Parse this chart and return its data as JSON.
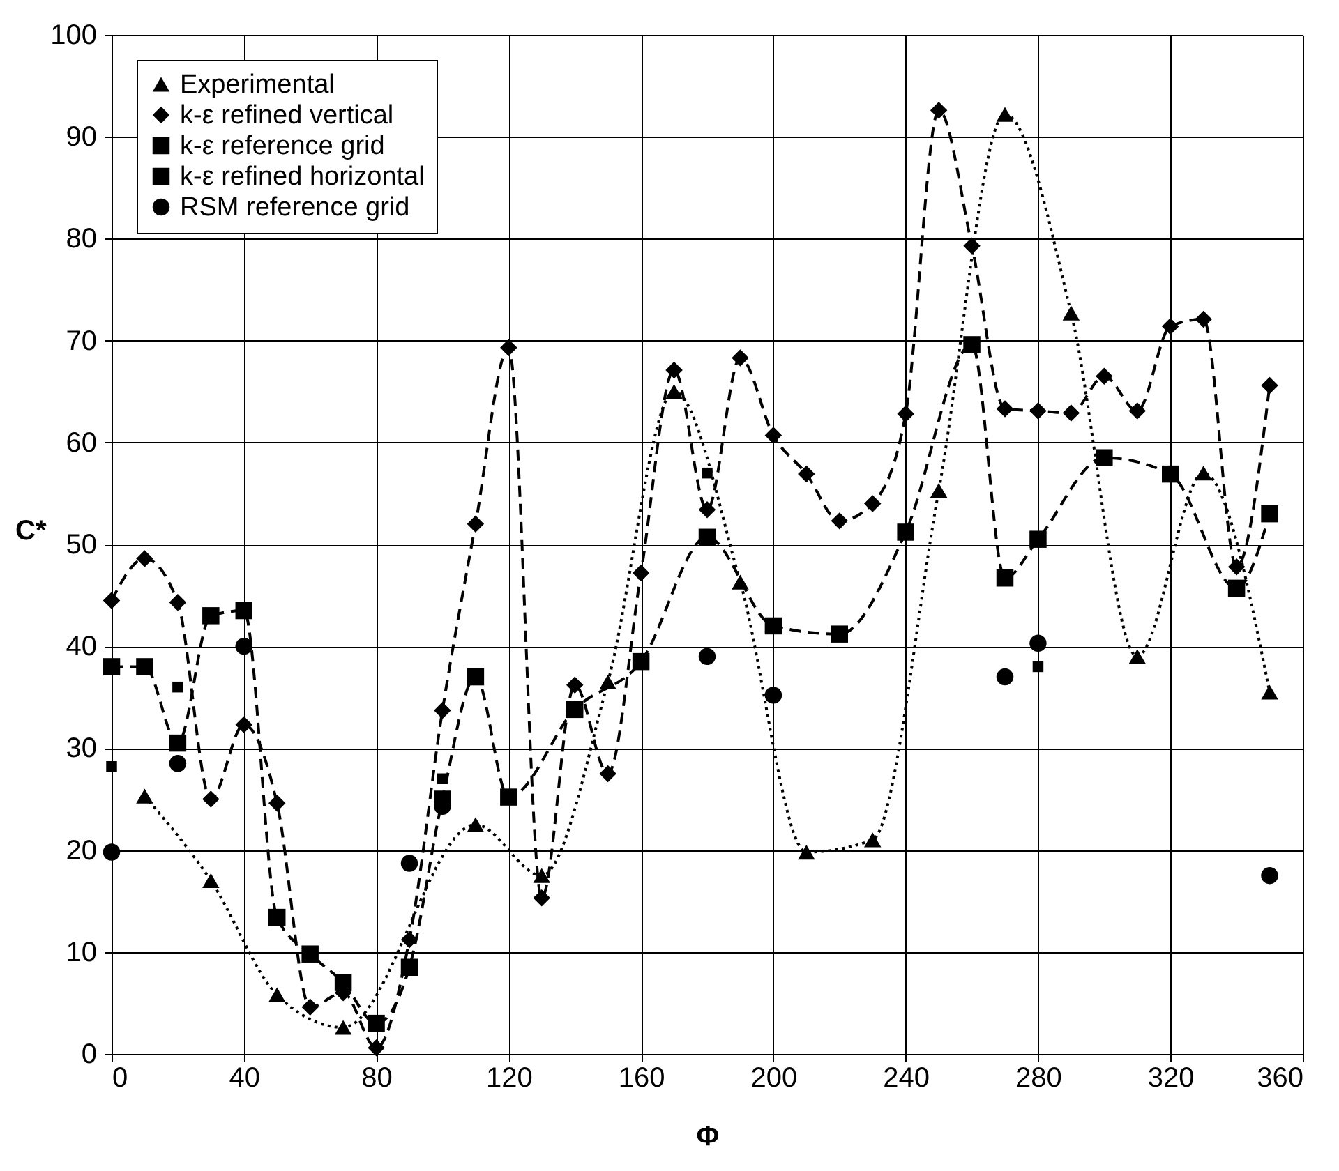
{
  "chart_data": {
    "type": "line",
    "xlabel": "Φ",
    "ylabel": "C*",
    "xlim": [
      0,
      360
    ],
    "xticks": [
      0,
      40,
      80,
      120,
      160,
      200,
      240,
      280,
      320,
      360
    ],
    "ylim": [
      0,
      100
    ],
    "yticks": [
      0,
      10,
      20,
      30,
      40,
      50,
      60,
      70,
      80,
      90,
      100
    ],
    "grid": true,
    "legend": "top left",
    "series": [
      {
        "name": "Experimental",
        "type": "line",
        "line_style": "dotted",
        "marker": "triangle",
        "color": "#000000",
        "x": [
          10,
          30,
          50,
          70,
          110,
          130,
          150,
          170,
          190,
          210,
          230,
          250,
          270,
          290,
          310,
          330,
          350
        ],
        "values": [
          25.3,
          17,
          5.8,
          2.6,
          22.5,
          17.5,
          36.5,
          65,
          46.3,
          19.8,
          21,
          55.3,
          92.2,
          72.7,
          39,
          57,
          35.5
        ]
      },
      {
        "name": "k-ε refined vertical",
        "type": "line",
        "line_style": "dashed",
        "marker": "diamond",
        "color": "#000000",
        "x": [
          0,
          10,
          20,
          30,
          40,
          50,
          60,
          70,
          80,
          90,
          100,
          110,
          120,
          130,
          140,
          150,
          160,
          170,
          180,
          190,
          200,
          210,
          220,
          230,
          240,
          250,
          260,
          270,
          280,
          290,
          300,
          310,
          320,
          330,
          340,
          350
        ],
        "values": [
          44.5,
          48.6,
          44.3,
          25,
          32.3,
          24.6,
          4.6,
          6,
          0.6,
          11.2,
          33.7,
          52,
          69.3,
          15.3,
          36.2,
          27.5,
          47.2,
          67.1,
          53.4,
          68.3,
          60.7,
          56.9,
          52.3,
          54,
          62.8,
          92.6,
          79.3,
          63.3,
          63.1,
          62.9,
          66.5,
          63.1,
          71.4,
          72.1,
          47.8,
          65.6
        ]
      },
      {
        "name": "k-ε reference grid",
        "type": "line",
        "line_style": "dashed",
        "marker": "square",
        "color": "#000000",
        "x": [
          0,
          10,
          20,
          30,
          40,
          50,
          60,
          70,
          80,
          90,
          100,
          110,
          120,
          140,
          160,
          180,
          200,
          220,
          240,
          260,
          270,
          280,
          300,
          320,
          340,
          350
        ],
        "values": [
          38,
          38,
          30.5,
          43,
          43.5,
          13.4,
          9.8,
          7,
          3,
          8.5,
          25,
          37,
          25.2,
          33.8,
          38.5,
          50.7,
          42,
          41.2,
          51.2,
          69.6,
          46.7,
          50.5,
          58.5,
          56.9,
          45.7,
          53
        ]
      },
      {
        "name": "k-ε refined horizontal",
        "type": "scatter",
        "marker": "square",
        "color": "#000000",
        "x": [
          0,
          20,
          100,
          180,
          280
        ],
        "values": [
          28.2,
          36,
          27,
          57,
          38
        ]
      },
      {
        "name": "RSM reference grid",
        "type": "scatter",
        "marker": "circle",
        "color": "#000000",
        "x": [
          0,
          20,
          40,
          90,
          100,
          180,
          200,
          270,
          280,
          350
        ],
        "values": [
          19.8,
          28.5,
          40,
          18.7,
          24.3,
          39,
          35.2,
          37,
          40.3,
          17.5
        ]
      }
    ]
  }
}
